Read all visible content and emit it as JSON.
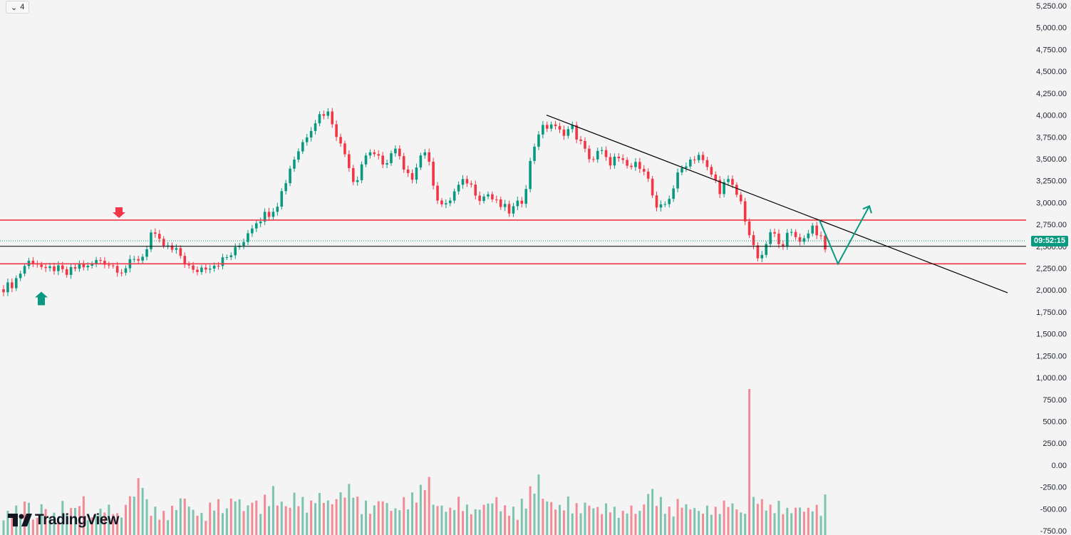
{
  "toolbar": {
    "layer_count": "4"
  },
  "price_tag": {
    "time": "09:52:15",
    "color": "#089981"
  },
  "brand": {
    "name": "TradingView"
  },
  "colors": {
    "up": "#089981",
    "down": "#f23645",
    "volume_up": "#7cc4b0",
    "volume_down": "#f28b96",
    "resistance": "#f23645",
    "trendline": "#000000",
    "projection": "#089981"
  },
  "chart_data": {
    "type": "candlestick",
    "title": "",
    "y_axis": {
      "min": -750,
      "max": 5250,
      "position": "right",
      "tick_labels": [
        "5,250.00",
        "5,000.00",
        "4,750.00",
        "4,500.00",
        "4,250.00",
        "4,000.00",
        "3,750.00",
        "3,500.00",
        "3,250.00",
        "3,000.00",
        "2,750.00",
        "2,500.00",
        "2,250.00",
        "2,000.00",
        "1,750.00",
        "1,500.00",
        "1,250.00",
        "1,000.00",
        "750.00",
        "500.00",
        "250.00",
        "0.00",
        "-250.00",
        "-500.00",
        "-750.00"
      ]
    },
    "price_path": [
      2030,
      2050,
      2150,
      2280,
      2350,
      2300,
      2200,
      2260,
      2220,
      2180,
      2240,
      2300,
      2250,
      2320,
      2350,
      2300,
      2260,
      2230,
      2300,
      2350,
      2400,
      2650,
      2550,
      2500,
      2450,
      2420,
      2300,
      2200,
      2250,
      2280,
      2300,
      2330,
      2380,
      2450,
      2550,
      2700,
      2800,
      2850,
      2900,
      3000,
      3200,
      3450,
      3600,
      3750,
      3900,
      4000,
      4050,
      3900,
      3650,
      3500,
      3200,
      3450,
      3600,
      3550,
      3400,
      3550,
      3600,
      3350,
      3250,
      3500,
      3600,
      3300,
      3000,
      2950,
      3100,
      3200,
      3250,
      3150,
      3050,
      3100,
      3000,
      2950,
      2900,
      2950,
      3050,
      3450,
      3800,
      3850,
      3900,
      3800,
      3820,
      3850,
      3700,
      3550,
      3500,
      3600,
      3450,
      3500,
      3450,
      3400,
      3420,
      3450,
      3200,
      2900,
      2950,
      3100,
      3300,
      3450,
      3500,
      3550,
      3400,
      3300,
      3150,
      3250,
      3150,
      3000,
      2700,
      2400,
      2350,
      2650,
      2600,
      2550,
      2650,
      2600,
      2580,
      2750,
      2650,
      2450
    ],
    "total_candles": 196,
    "volume": [
      120,
      150,
      100,
      180,
      90,
      200,
      130,
      110,
      170,
      140,
      160,
      210,
      90,
      130,
      180,
      150,
      110,
      160,
      220,
      300,
      180,
      140,
      120,
      100,
      150,
      200,
      170,
      130,
      110,
      160,
      180,
      140,
      210,
      190,
      150,
      230,
      170,
      200,
      250,
      180,
      160,
      220,
      190,
      170,
      240,
      210,
      180,
      200,
      230,
      260,
      190,
      170,
      150,
      210,
      180,
      140,
      160,
      190,
      210,
      250,
      300,
      180,
      160,
      140,
      170,
      190,
      150,
      130,
      160,
      180,
      200,
      150,
      140,
      120,
      180,
      250,
      330,
      200,
      170,
      150,
      190,
      160,
      140,
      170,
      150,
      130,
      160,
      140,
      120,
      150,
      130,
      170,
      240,
      190,
      160,
      140,
      180,
      160,
      150,
      130,
      150,
      140,
      170,
      200,
      160,
      120,
      880,
      200,
      180,
      150,
      170,
      140,
      130,
      150,
      140,
      160,
      150,
      200
    ],
    "annotations": [
      {
        "type": "horizontal_line",
        "price": 2800,
        "color": "#f23645"
      },
      {
        "type": "horizontal_line",
        "price": 2300,
        "color": "#f23645"
      },
      {
        "type": "horizontal_line",
        "price": 2500,
        "color": "#000000"
      },
      {
        "type": "trendline",
        "from": {
          "price": 4000
        },
        "to": {
          "price": 1970
        }
      },
      {
        "type": "arrow_marker",
        "direction": "down",
        "price": 2800,
        "color": "#f23645"
      },
      {
        "type": "arrow_marker",
        "direction": "up",
        "price": 2030,
        "color": "#089981"
      },
      {
        "type": "projection_path",
        "prices": [
          2800,
          2300,
          2960
        ],
        "color": "#089981"
      }
    ]
  }
}
